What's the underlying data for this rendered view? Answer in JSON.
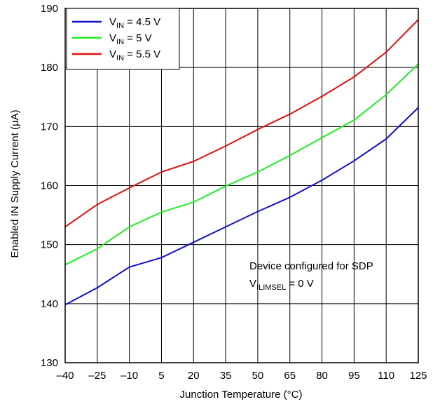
{
  "chart_data": {
    "type": "line",
    "title": "",
    "xlabel": "Junction Temperature (°C)",
    "ylabel": "Enabled IN Supply Current (µA)",
    "x": [
      -40,
      -25,
      -10,
      5,
      20,
      35,
      50,
      65,
      80,
      95,
      110,
      125
    ],
    "x_tick_labels": [
      "–40",
      "–25",
      "–10",
      "5",
      "20",
      "35",
      "50",
      "65",
      "80",
      "95",
      "110",
      "125"
    ],
    "xlim": [
      -40,
      125
    ],
    "ylim": [
      130,
      190
    ],
    "y_ticks": [
      130,
      140,
      150,
      160,
      170,
      180,
      190
    ],
    "grid": true,
    "legend_position": "top-left",
    "series": [
      {
        "name_main": "V",
        "name_sub": "IN",
        "name_rest": " = 4.5 V",
        "color": "#1010d0",
        "values": [
          139.8,
          142.7,
          146.2,
          147.8,
          150.4,
          153.0,
          155.6,
          158.0,
          160.9,
          164.2,
          167.9,
          173.2
        ]
      },
      {
        "name_main": "V",
        "name_sub": "IN",
        "name_rest": " = 5 V",
        "color": "#22ee22",
        "values": [
          146.6,
          149.3,
          153.0,
          155.5,
          157.2,
          159.9,
          162.3,
          165.1,
          168.1,
          171.1,
          175.4,
          180.6
        ]
      },
      {
        "name_main": "V",
        "name_sub": "IN",
        "name_rest": " = 5.5 V",
        "color": "#e01010",
        "values": [
          153.0,
          156.8,
          159.6,
          162.3,
          164.1,
          166.7,
          169.5,
          172.1,
          175.1,
          178.4,
          182.6,
          188.1
        ]
      }
    ],
    "annotation": {
      "line1": "Device configured for SDP",
      "line2_main": "V",
      "line2_sub": "ILIMSEL",
      "line2_rest": " = 0 V"
    }
  }
}
